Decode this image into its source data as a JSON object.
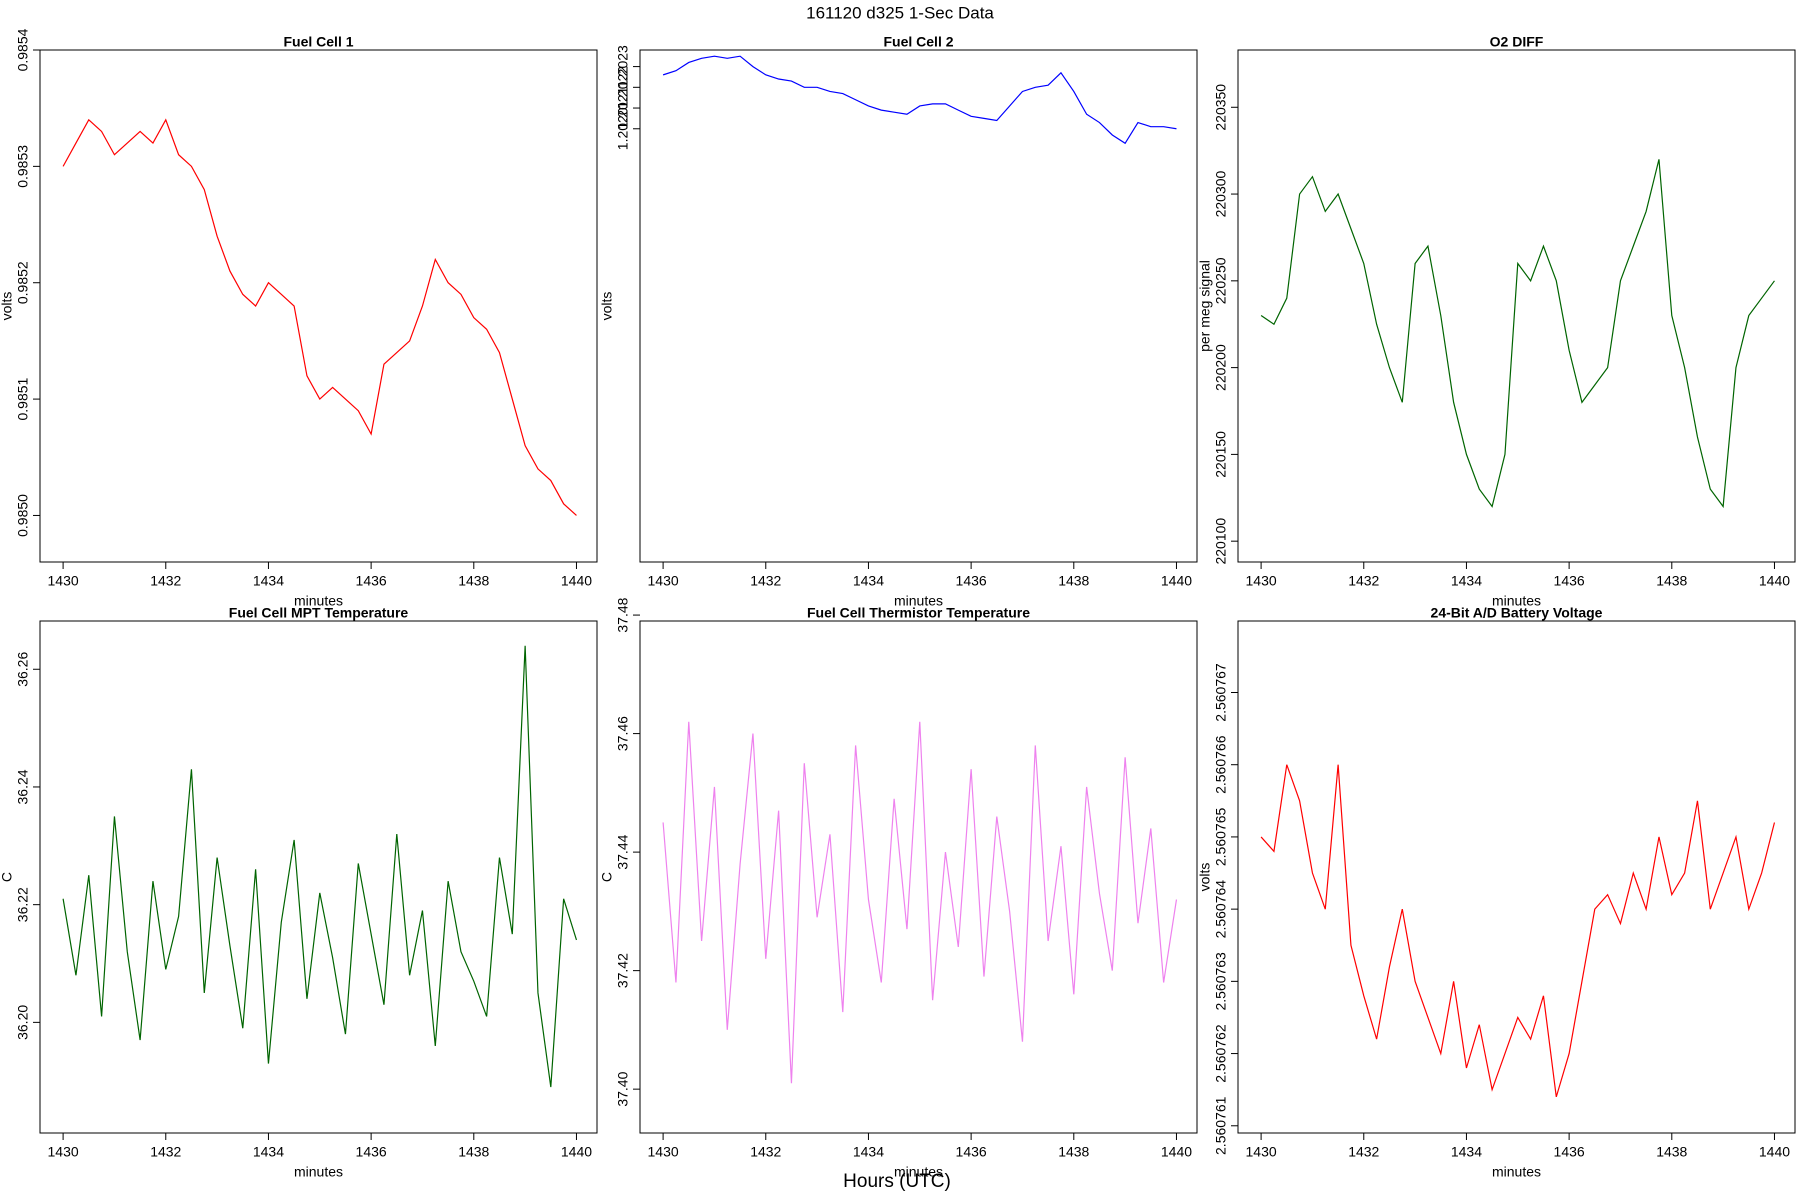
{
  "title": "161120   d325   1-Sec Data",
  "xlabel": "Hours (UTC)",
  "chart_data": [
    {
      "type": "line",
      "title": "Fuel Cell 1",
      "xlabel": "minutes",
      "ylabel": "volts",
      "color": "#ff0000",
      "xlim": [
        1429.55,
        1440.4
      ],
      "xticks": [
        1430,
        1432,
        1434,
        1436,
        1438,
        1440
      ],
      "ylim": [
        0.98496,
        0.9854
      ],
      "yticks": [
        {
          "value": 0.985,
          "label": "0.9850"
        },
        0.9851,
        0.9852,
        0.9853,
        0.9854
      ],
      "x": [
        1430,
        1430.25,
        1430.5,
        1430.75,
        1431,
        1431.25,
        1431.5,
        1431.75,
        1432,
        1432.25,
        1432.5,
        1432.75,
        1433,
        1433.25,
        1433.5,
        1433.75,
        1434,
        1434.25,
        1434.5,
        1434.75,
        1435,
        1435.25,
        1435.5,
        1435.75,
        1436,
        1436.25,
        1436.5,
        1436.75,
        1437,
        1437.25,
        1437.5,
        1437.75,
        1438,
        1438.25,
        1438.5,
        1438.75,
        1439,
        1439.25,
        1439.5,
        1439.75,
        1440
      ],
      "values": [
        0.9853,
        0.98532,
        0.98534,
        0.98533,
        0.98531,
        0.98532,
        0.98533,
        0.98532,
        0.98534,
        0.98531,
        0.9853,
        0.98528,
        0.98524,
        0.98521,
        0.98519,
        0.98518,
        0.9852,
        0.98519,
        0.98518,
        0.98512,
        0.9851,
        0.98511,
        0.9851,
        0.98509,
        0.98507,
        0.98513,
        0.98514,
        0.98515,
        0.98518,
        0.98522,
        0.9852,
        0.98519,
        0.98517,
        0.98516,
        0.98514,
        0.9851,
        0.98506,
        0.98504,
        0.98503,
        0.98501,
        0.985
      ]
    },
    {
      "type": "line",
      "title": "Fuel Cell 2",
      "xlabel": "minutes",
      "ylabel": "volts",
      "color": "#0000ff",
      "xlim": [
        1429.55,
        1440.4
      ],
      "xticks": [
        1430,
        1432,
        1434,
        1436,
        1438,
        1440
      ],
      "ylim": [
        1.19991,
        1.20238
      ],
      "yticks": [
        {
          "value": 1.202,
          "label": "1.2020"
        },
        1.2021,
        1.2022,
        1.2023
      ],
      "x": [
        1430,
        1430.25,
        1430.5,
        1430.75,
        1431,
        1431.25,
        1431.5,
        1431.75,
        1432,
        1432.25,
        1432.5,
        1432.75,
        1433,
        1433.25,
        1433.5,
        1433.75,
        1434,
        1434.25,
        1434.5,
        1434.75,
        1435,
        1435.25,
        1435.5,
        1435.75,
        1436,
        1436.25,
        1436.5,
        1436.75,
        1437,
        1437.25,
        1437.5,
        1437.75,
        1438,
        1438.25,
        1438.5,
        1438.75,
        1439,
        1439.25,
        1439.5,
        1439.75,
        1440
      ],
      "values": [
        1.20226,
        1.20228,
        1.20232,
        1.20234,
        1.20235,
        1.20234,
        1.20235,
        1.2023,
        1.20226,
        1.20224,
        1.20223,
        1.2022,
        1.2022,
        1.20218,
        1.20217,
        1.20214,
        1.20211,
        1.20209,
        1.20208,
        1.20207,
        1.20211,
        1.20212,
        1.20212,
        1.20209,
        1.20206,
        1.20205,
        1.20204,
        1.20211,
        1.20218,
        1.2022,
        1.20221,
        1.20227,
        1.20218,
        1.20207,
        1.20203,
        1.20197,
        1.20193,
        1.20203,
        1.20201,
        1.20201,
        1.202
      ]
    },
    {
      "type": "line",
      "title": "O2 DIFF",
      "xlabel": "minutes",
      "ylabel": "per meg signal",
      "color": "#006400",
      "xlim": [
        1429.55,
        1440.4
      ],
      "xticks": [
        1430,
        1432,
        1434,
        1436,
        1438,
        1440
      ],
      "ylim": [
        220088,
        220383
      ],
      "yticks": [
        220100,
        220150,
        220200,
        220250,
        220300,
        220350
      ],
      "x": [
        1430,
        1430.25,
        1430.5,
        1430.75,
        1431,
        1431.25,
        1431.5,
        1431.75,
        1432,
        1432.25,
        1432.5,
        1432.75,
        1433,
        1433.25,
        1433.5,
        1433.75,
        1434,
        1434.25,
        1434.5,
        1434.75,
        1435,
        1435.25,
        1435.5,
        1435.75,
        1436,
        1436.25,
        1436.5,
        1436.75,
        1437,
        1437.25,
        1437.5,
        1437.75,
        1438,
        1438.25,
        1438.5,
        1438.75,
        1439,
        1439.25,
        1439.5,
        1439.75,
        1440
      ],
      "values": [
        220230,
        220225,
        220240,
        220300,
        220310,
        220290,
        220300,
        220280,
        220260,
        220225,
        220200,
        220180,
        220260,
        220270,
        220230,
        220180,
        220150,
        220130,
        220120,
        220150,
        220260,
        220250,
        220270,
        220250,
        220210,
        220180,
        220190,
        220200,
        220250,
        220270,
        220290,
        220320,
        220230,
        220200,
        220160,
        220130,
        220120,
        220200,
        220230,
        220240,
        220250
      ]
    },
    {
      "type": "line",
      "title": "Fuel Cell MPT Temperature",
      "xlabel": "minutes",
      "ylabel": "C",
      "color": "#006400",
      "xlim": [
        1429.55,
        1440.4
      ],
      "xticks": [
        1430,
        1432,
        1434,
        1436,
        1438,
        1440
      ],
      "ylim": [
        36.1812,
        36.2682
      ],
      "yticks": [
        {
          "value": 36.2,
          "label": "36.20"
        },
        36.22,
        36.24,
        36.26
      ],
      "x": [
        1430,
        1430.25,
        1430.5,
        1430.75,
        1431,
        1431.25,
        1431.5,
        1431.75,
        1432,
        1432.25,
        1432.5,
        1432.75,
        1433,
        1433.25,
        1433.5,
        1433.75,
        1434,
        1434.25,
        1434.5,
        1434.75,
        1435,
        1435.25,
        1435.5,
        1435.75,
        1436,
        1436.25,
        1436.5,
        1436.75,
        1437,
        1437.25,
        1437.5,
        1437.75,
        1438,
        1438.25,
        1438.5,
        1438.75,
        1439,
        1439.25,
        1439.5,
        1439.75,
        1440
      ],
      "values": [
        36.221,
        36.208,
        36.225,
        36.201,
        36.235,
        36.212,
        36.197,
        36.224,
        36.209,
        36.218,
        36.243,
        36.205,
        36.228,
        36.213,
        36.199,
        36.226,
        36.193,
        36.217,
        36.231,
        36.204,
        36.222,
        36.211,
        36.198,
        36.227,
        36.215,
        36.203,
        36.232,
        36.208,
        36.219,
        36.196,
        36.224,
        36.212,
        36.207,
        36.201,
        36.228,
        36.215,
        36.264,
        36.205,
        36.189,
        36.221,
        36.214
      ]
    },
    {
      "type": "line",
      "title": "Fuel Cell Thermistor Temperature",
      "xlabel": "minutes",
      "ylabel": "C",
      "color": "#ee82ee",
      "xlim": [
        1429.55,
        1440.4
      ],
      "xticks": [
        1430,
        1432,
        1434,
        1436,
        1438,
        1440
      ],
      "ylim": [
        37.3926,
        37.479
      ],
      "yticks": [
        {
          "value": 37.4,
          "label": "37.40"
        },
        37.42,
        37.44,
        37.46,
        {
          "value": 37.48,
          "label": "37.48"
        }
      ],
      "x": [
        1430,
        1430.25,
        1430.5,
        1430.75,
        1431,
        1431.25,
        1431.5,
        1431.75,
        1432,
        1432.25,
        1432.5,
        1432.75,
        1433,
        1433.25,
        1433.5,
        1433.75,
        1434,
        1434.25,
        1434.5,
        1434.75,
        1435,
        1435.25,
        1435.5,
        1435.75,
        1436,
        1436.25,
        1436.5,
        1436.75,
        1437,
        1437.25,
        1437.5,
        1437.75,
        1438,
        1438.25,
        1438.5,
        1438.75,
        1439,
        1439.25,
        1439.5,
        1439.75,
        1440
      ],
      "values": [
        37.445,
        37.418,
        37.462,
        37.425,
        37.451,
        37.41,
        37.438,
        37.46,
        37.422,
        37.447,
        37.401,
        37.455,
        37.429,
        37.443,
        37.413,
        37.458,
        37.432,
        37.418,
        37.449,
        37.427,
        37.462,
        37.415,
        37.44,
        37.424,
        37.454,
        37.419,
        37.446,
        37.43,
        37.408,
        37.458,
        37.425,
        37.441,
        37.416,
        37.451,
        37.433,
        37.42,
        37.456,
        37.428,
        37.444,
        37.418,
        37.432
      ]
    },
    {
      "type": "line",
      "title": "24-Bit A/D Battery Voltage",
      "xlabel": "minutes",
      "ylabel": "volts",
      "color": "#ff0000",
      "xlim": [
        1429.55,
        1440.4
      ],
      "xticks": [
        1430,
        1432,
        1434,
        1436,
        1438,
        1440
      ],
      "ylim": [
        2.5607609,
        2.56076799
      ],
      "yticks": [
        2.560761,
        2.560762,
        2.560763,
        2.560764,
        2.560765,
        2.560766,
        2.560767
      ],
      "x": [
        1430,
        1430.25,
        1430.5,
        1430.75,
        1431,
        1431.25,
        1431.5,
        1431.75,
        1432,
        1432.25,
        1432.5,
        1432.75,
        1433,
        1433.25,
        1433.5,
        1433.75,
        1434,
        1434.25,
        1434.5,
        1434.75,
        1435,
        1435.25,
        1435.5,
        1435.75,
        1436,
        1436.25,
        1436.5,
        1436.75,
        1437,
        1437.25,
        1437.5,
        1437.75,
        1438,
        1438.25,
        1438.5,
        1438.75,
        1439,
        1439.25,
        1439.5,
        1439.75,
        1440
      ],
      "values": [
        2.560765,
        2.5607648,
        2.560766,
        2.5607655,
        2.5607645,
        2.560764,
        2.560766,
        2.5607635,
        2.5607628,
        2.5607622,
        2.5607632,
        2.560764,
        2.560763,
        2.5607625,
        2.560762,
        2.560763,
        2.5607618,
        2.5607624,
        2.5607615,
        2.560762,
        2.5607625,
        2.5607622,
        2.5607628,
        2.5607614,
        2.560762,
        2.560763,
        2.560764,
        2.5607642,
        2.5607638,
        2.5607645,
        2.560764,
        2.560765,
        2.5607642,
        2.5607645,
        2.5607655,
        2.560764,
        2.5607645,
        2.560765,
        2.560764,
        2.5607645,
        2.5607652
      ]
    }
  ]
}
